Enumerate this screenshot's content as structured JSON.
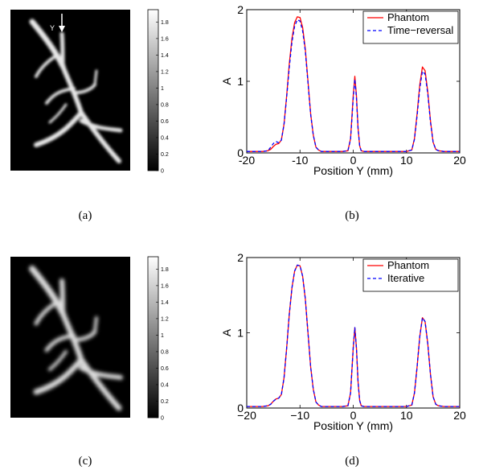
{
  "panels": [
    {
      "id": "a",
      "caption": "(a)",
      "annotation": "Y",
      "colorbar_ticks": [
        "1.8",
        "1.6",
        "1.4",
        "1.2",
        "1",
        "0.8",
        "0.6",
        "0.4",
        "0.2",
        "0"
      ]
    },
    {
      "id": "b",
      "caption": "(b)"
    },
    {
      "id": "c",
      "caption": "(c)",
      "colorbar_ticks": [
        "1.8",
        "1.6",
        "1.4",
        "1.2",
        "1",
        "0.8",
        "0.6",
        "0.4",
        "0.2",
        "0"
      ]
    },
    {
      "id": "d",
      "caption": "(d)"
    }
  ],
  "chart_data": [
    {
      "panel": "b",
      "type": "line",
      "xlabel": "Position Y (mm)",
      "ylabel": "A",
      "xlim": [
        -20,
        20
      ],
      "ylim": [
        0,
        2
      ],
      "x_ticks": [
        "-20",
        "-10",
        "0",
        "10",
        "20"
      ],
      "y_ticks": [
        "0",
        "1",
        "2"
      ],
      "legend_position": "top-right",
      "grid": false,
      "series": [
        {
          "name": "Phantom",
          "color": "#ff0000",
          "style": "solid",
          "x": [
            -20,
            -17,
            -16,
            -15.5,
            -15,
            -14.5,
            -14,
            -13.5,
            -13,
            -12.5,
            -12,
            -11.5,
            -11,
            -10.5,
            -10,
            -9.5,
            -9,
            -8.5,
            -8,
            -7.5,
            -7,
            -6.5,
            -6,
            -5,
            -4,
            -3,
            -2,
            -1,
            -0.5,
            0,
            0.3,
            0.6,
            0.9,
            1.2,
            1.5,
            2,
            3,
            5,
            8,
            10,
            11,
            11.5,
            12,
            12.5,
            13,
            13.5,
            14,
            14.5,
            15,
            15.5,
            16,
            17,
            20
          ],
          "y": [
            0.02,
            0.02,
            0.03,
            0.05,
            0.09,
            0.12,
            0.13,
            0.18,
            0.4,
            0.8,
            1.25,
            1.6,
            1.82,
            1.9,
            1.89,
            1.75,
            1.45,
            1.0,
            0.55,
            0.25,
            0.08,
            0.04,
            0.02,
            0.02,
            0.02,
            0.02,
            0.02,
            0.03,
            0.2,
            0.8,
            1.07,
            0.8,
            0.35,
            0.1,
            0.03,
            0.02,
            0.02,
            0.02,
            0.02,
            0.02,
            0.04,
            0.2,
            0.55,
            0.95,
            1.2,
            1.15,
            0.85,
            0.45,
            0.15,
            0.05,
            0.03,
            0.02,
            0.02
          ]
        },
        {
          "name": "Time−reversal",
          "color": "#0000ff",
          "style": "dashed",
          "x": [
            -20,
            -17,
            -16,
            -15.5,
            -15,
            -14.5,
            -14,
            -13.5,
            -13,
            -12.5,
            -12,
            -11.5,
            -11,
            -10.5,
            -10,
            -9.5,
            -9,
            -8.5,
            -8,
            -7.5,
            -7,
            -6.5,
            -6,
            -5,
            -4,
            -3,
            -2,
            -1,
            -0.5,
            0,
            0.3,
            0.6,
            0.9,
            1.2,
            1.5,
            2,
            3,
            5,
            8,
            10,
            11,
            11.5,
            12,
            12.5,
            13,
            13.5,
            14,
            14.5,
            15,
            15.5,
            16,
            17,
            20
          ],
          "y": [
            0.02,
            0.02,
            0.03,
            0.08,
            0.13,
            0.16,
            0.14,
            0.18,
            0.4,
            0.78,
            1.2,
            1.55,
            1.77,
            1.86,
            1.84,
            1.7,
            1.42,
            0.98,
            0.54,
            0.25,
            0.08,
            0.04,
            0.02,
            0.02,
            0.02,
            0.02,
            0.02,
            0.03,
            0.19,
            0.76,
            1.03,
            0.77,
            0.34,
            0.1,
            0.03,
            0.02,
            0.02,
            0.02,
            0.02,
            0.02,
            0.04,
            0.19,
            0.52,
            0.9,
            1.14,
            1.1,
            0.82,
            0.43,
            0.15,
            0.05,
            0.03,
            0.02,
            0.02
          ]
        }
      ]
    },
    {
      "panel": "d",
      "type": "line",
      "xlabel": "Position Y (mm)",
      "ylabel": "A",
      "xlim": [
        -20,
        20
      ],
      "ylim": [
        0,
        2
      ],
      "x_ticks": [
        "−20",
        "−10",
        "0",
        "10",
        "20"
      ],
      "y_ticks": [
        "0",
        "1",
        "2"
      ],
      "legend_position": "top-right",
      "grid": false,
      "series": [
        {
          "name": "Phantom",
          "color": "#ff0000",
          "style": "solid",
          "x": [
            -20,
            -17,
            -16,
            -15.5,
            -15,
            -14.5,
            -14,
            -13.5,
            -13,
            -12.5,
            -12,
            -11.5,
            -11,
            -10.5,
            -10,
            -9.5,
            -9,
            -8.5,
            -8,
            -7.5,
            -7,
            -6.5,
            -6,
            -5,
            -4,
            -3,
            -2,
            -1,
            -0.5,
            0,
            0.3,
            0.6,
            0.9,
            1.2,
            1.5,
            2,
            3,
            5,
            8,
            10,
            11,
            11.5,
            12,
            12.5,
            13,
            13.5,
            14,
            14.5,
            15,
            15.5,
            16,
            17,
            20
          ],
          "y": [
            0.02,
            0.02,
            0.03,
            0.05,
            0.09,
            0.12,
            0.13,
            0.18,
            0.4,
            0.8,
            1.25,
            1.6,
            1.82,
            1.9,
            1.89,
            1.75,
            1.45,
            1.0,
            0.55,
            0.25,
            0.08,
            0.04,
            0.02,
            0.02,
            0.02,
            0.02,
            0.02,
            0.03,
            0.2,
            0.8,
            1.07,
            0.8,
            0.35,
            0.1,
            0.03,
            0.02,
            0.02,
            0.02,
            0.02,
            0.02,
            0.04,
            0.2,
            0.55,
            0.95,
            1.2,
            1.15,
            0.85,
            0.45,
            0.15,
            0.05,
            0.03,
            0.02,
            0.02
          ]
        },
        {
          "name": "Iterative",
          "color": "#0000ff",
          "style": "dashed",
          "x": [
            -20,
            -17,
            -16,
            -15.5,
            -15,
            -14.5,
            -14,
            -13.5,
            -13,
            -12.5,
            -12,
            -11.5,
            -11,
            -10.5,
            -10,
            -9.5,
            -9,
            -8.5,
            -8,
            -7.5,
            -7,
            -6.5,
            -6,
            -5,
            -4,
            -3,
            -2,
            -1,
            -0.5,
            0,
            0.3,
            0.6,
            0.9,
            1.2,
            1.5,
            2,
            3,
            5,
            8,
            10,
            11,
            11.5,
            12,
            12.5,
            13,
            13.5,
            14,
            14.5,
            15,
            15.5,
            16,
            17,
            20
          ],
          "y": [
            0.02,
            0.02,
            0.03,
            0.05,
            0.09,
            0.12,
            0.13,
            0.18,
            0.4,
            0.8,
            1.25,
            1.6,
            1.82,
            1.9,
            1.89,
            1.75,
            1.45,
            1.0,
            0.55,
            0.25,
            0.08,
            0.04,
            0.02,
            0.02,
            0.02,
            0.02,
            0.02,
            0.03,
            0.2,
            0.8,
            1.07,
            0.8,
            0.35,
            0.1,
            0.03,
            0.02,
            0.02,
            0.02,
            0.02,
            0.02,
            0.04,
            0.2,
            0.55,
            0.95,
            1.2,
            1.15,
            0.85,
            0.45,
            0.15,
            0.05,
            0.03,
            0.02,
            0.02
          ]
        }
      ]
    }
  ]
}
